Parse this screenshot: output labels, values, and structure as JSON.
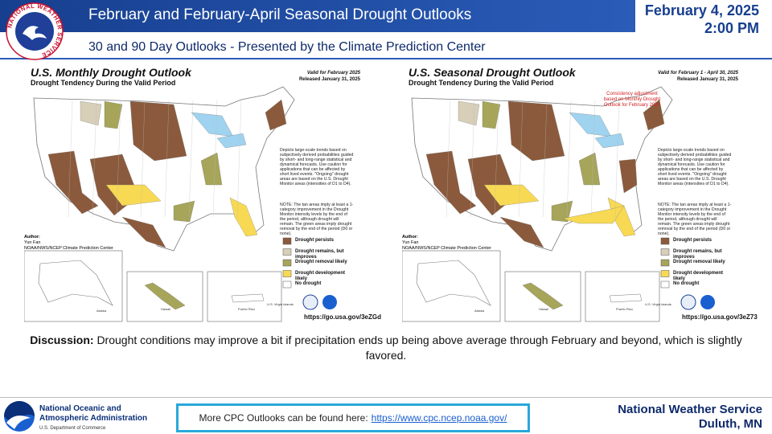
{
  "header": {
    "title": "February and February-April Seasonal Drought Outlooks",
    "date": "February 4, 2025",
    "time": "2:00 PM",
    "subtitle": "30 and 90 Day Outlooks - Presented by the Climate Prediction Center",
    "logo_text": "NATIONAL WEATHER SERVICE"
  },
  "panels": [
    {
      "title": "U.S. Monthly Drought Outlook",
      "subtitle": "Drought Tendency During the Valid Period",
      "valid": "Valid for February 2025",
      "released": "Released January 31, 2025",
      "description": "Depicts large-scale trends based on subjectively derived probabilities guided by short- and long-range statistical and dynamical forecasts. Use caution for applications that can be affected by short lived events. \"Ongoing\" drought areas are based on the U.S. Drought Monitor areas (intensities of D1 to D4).",
      "note_text": "NOTE: The tan areas imply at least a 1-category improvement in the Drought Monitor intensity levels by the end of the period, although drought will remain. The green areas imply drought removal by the end of the period (D0 or none).",
      "author_label": "Author:",
      "author": "Yun Fan",
      "affiliation": "NOAA/NWS/NCEP Climate Prediction Center",
      "legend": [
        "Drought persists",
        "Drought remains, but improves",
        "Drought removal likely",
        "Drought development likely",
        "No drought"
      ],
      "insets": [
        "Alaska",
        "Hawaii",
        "Puerto Rico",
        "U.S. Virgin Islands"
      ],
      "link": "https://go.usa.gov/3eZGd"
    },
    {
      "title": "U.S. Seasonal Drought Outlook",
      "subtitle": "Drought Tendency During the Valid Period",
      "valid": "Valid for February 1 - April 30, 2025",
      "released": "Released January 31, 2025",
      "consistency": "Consistency adjustment based on Monthly Drought Outlook for February 2025",
      "description": "Depicts large-scale trends based on subjectively derived probabilities guided by short- and long-range statistical and dynamical forecasts. Use caution for applications that can be affected by short lived events. \"Ongoing\" drought areas are based on the U.S. Drought Monitor areas (intensities of D1 to D4).",
      "note_text": "NOTE: The tan areas imply at least a 1-category improvement in the Drought Monitor intensity levels by the end of the period, although drought will remain. The green areas imply drought removal by the end of the period (D0 or none).",
      "author_label": "Author:",
      "author": "Yun Fan",
      "affiliation": "NOAA/NWS/NCEP Climate Prediction Center",
      "legend": [
        "Drought persists",
        "Drought remains, but improves",
        "Drought removal likely",
        "Drought development likely",
        "No drought"
      ],
      "insets": [
        "Alaska",
        "Hawaii",
        "Puerto Rico",
        "U.S. Virgin Islands"
      ],
      "link": "https://go.usa.gov/3eZ73"
    }
  ],
  "discussion": {
    "label": "Discussion:",
    "text": "Drought conditions may improve a bit if precipitation ends up being above average through February and beyond, which is slightly favored."
  },
  "footer": {
    "noaa_line1": "National Oceanic and",
    "noaa_line2": "Atmospheric Administration",
    "noaa_dept": "U.S. Department of Commerce",
    "more": "More CPC Outlooks can be found here:",
    "more_link": "https://www.cpc.ncep.noaa.gov/",
    "office": "National Weather Service",
    "location": "Duluth, MN"
  }
}
